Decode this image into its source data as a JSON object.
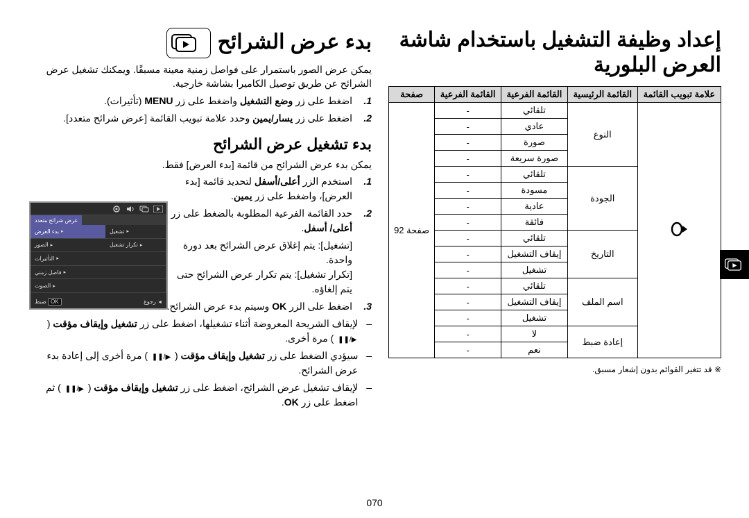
{
  "page_number": "070",
  "side_tab_icon": "play-stack",
  "right": {
    "title": "إعداد وظيفة التشغيل باستخدام شاشة العرض البلورية",
    "table": {
      "headers": [
        "علامة تبويب القائمة",
        "القائمة الرئيسية",
        "القائمة الفرعية",
        "القائمة الفرعية",
        "صفحة"
      ],
      "page_ref": "صفحة 92",
      "groups": [
        {
          "main": "النوع",
          "rows": [
            [
              "تلقائي",
              "-"
            ],
            [
              "عادي",
              "-"
            ],
            [
              "صورة",
              "-"
            ],
            [
              "صورة سريعة",
              "-"
            ]
          ]
        },
        {
          "main": "الجودة",
          "rows": [
            [
              "تلقائي",
              "-"
            ],
            [
              "مسودة",
              "-"
            ],
            [
              "عادية",
              "-"
            ],
            [
              "فائقة",
              "-"
            ]
          ]
        },
        {
          "main": "التاريخ",
          "rows": [
            [
              "تلقائي",
              "-"
            ],
            [
              "إيقاف التشغيل",
              "-"
            ],
            [
              "تشغيل",
              "-"
            ]
          ]
        },
        {
          "main": "اسم الملف",
          "rows": [
            [
              "تلقائي",
              "-"
            ],
            [
              "إيقاف التشغيل",
              "-"
            ],
            [
              "تشغيل",
              "-"
            ]
          ]
        },
        {
          "main": "إعادة ضبط",
          "rows": [
            [
              "لا",
              "-"
            ],
            [
              "نعم",
              "-"
            ]
          ]
        }
      ]
    },
    "footnote": "※ قد تتغير القوائم بدون إشعار مسبق."
  },
  "left": {
    "title": "بدء عرض الشرائح",
    "title_icon": "play-stack",
    "intro": "يمكن عرض الصور باستمرار على فواصل زمنية معينة مسبقًا. ويمكنك تشغيل عرض الشرائح عن طريق توصيل الكاميرا بشاشة خارجية.",
    "steps_top": [
      "اضغط على زر <b>وضع التشغيل</b> واضغط على زر <b>MENU</b> (تأثيرات).",
      "اضغط على زر <b>يسار/يمين</b> وحدد علامة تبويب القائمة [عرض شرائح متعدد]."
    ],
    "subheading": "بدء تشغيل عرض الشرائح",
    "subtext": "يمكن بدء عرض الشرائح من قائمة [بدء العرض] فقط.",
    "steps_bottom": [
      "استخدم الزر <b>أعلى/أسفل</b> لتحديد قائمة [بدء العرض]، واضغط على زر <b>يمين</b>.",
      "حدد القائمة الفرعية المطلوبة بالضغط على زر <b>أعلى/ أسفل</b>.",
      "اضغط على الزر <b>OK</b> وسيتم بدء عرض الشرائح."
    ],
    "notes_inline": [
      "[تشغيل]:     يتم إغلاق عرض الشرائح بعد دورة واحدة.",
      "[تكرار تشغيل]:   يتم تكرار عرض الشرائح حتى يتم إلغاؤه."
    ],
    "dash_items": [
      "لإيقاف الشريحة المعروضة أثناء تشغيلها، اضغط على زر <b>تشغيل وإيقاف مؤقت</b> ( <span class='chip-icon'>▶/❚❚</span> ) مرة أخرى.",
      "سيؤدي الضغط على زر <b>تشغيل وإيقاف مؤقت</b> ( <span class='chip-icon'>▶/❚❚</span> ) مرة أخرى إلى إعادة بدء عرض الشرائح.",
      "لإيقاف تشغيل عرض الشرائح، اضغط على زر <b>تشغيل وإيقاف مؤقت</b> ( <span class='chip-icon'>▶/❚❚</span> ) ثم اضغط على زر <b>OK</b>."
    ]
  },
  "camera_ui": {
    "tab_label": "عرض شرائح متعدد",
    "rows": [
      {
        "label": "بدء العرض",
        "value": "تشغيل",
        "active": true
      },
      {
        "label": "الصور",
        "value": "تكرار تشغيل",
        "active": false
      },
      {
        "label": "التأثيرات",
        "value": "",
        "active": false
      },
      {
        "label": "فاصل زمني",
        "value": "",
        "active": false
      },
      {
        "label": "الصوت",
        "value": "",
        "active": false
      }
    ],
    "bottom_left": "رجوع",
    "bottom_right": "ضبط",
    "ok_label": "OK"
  }
}
